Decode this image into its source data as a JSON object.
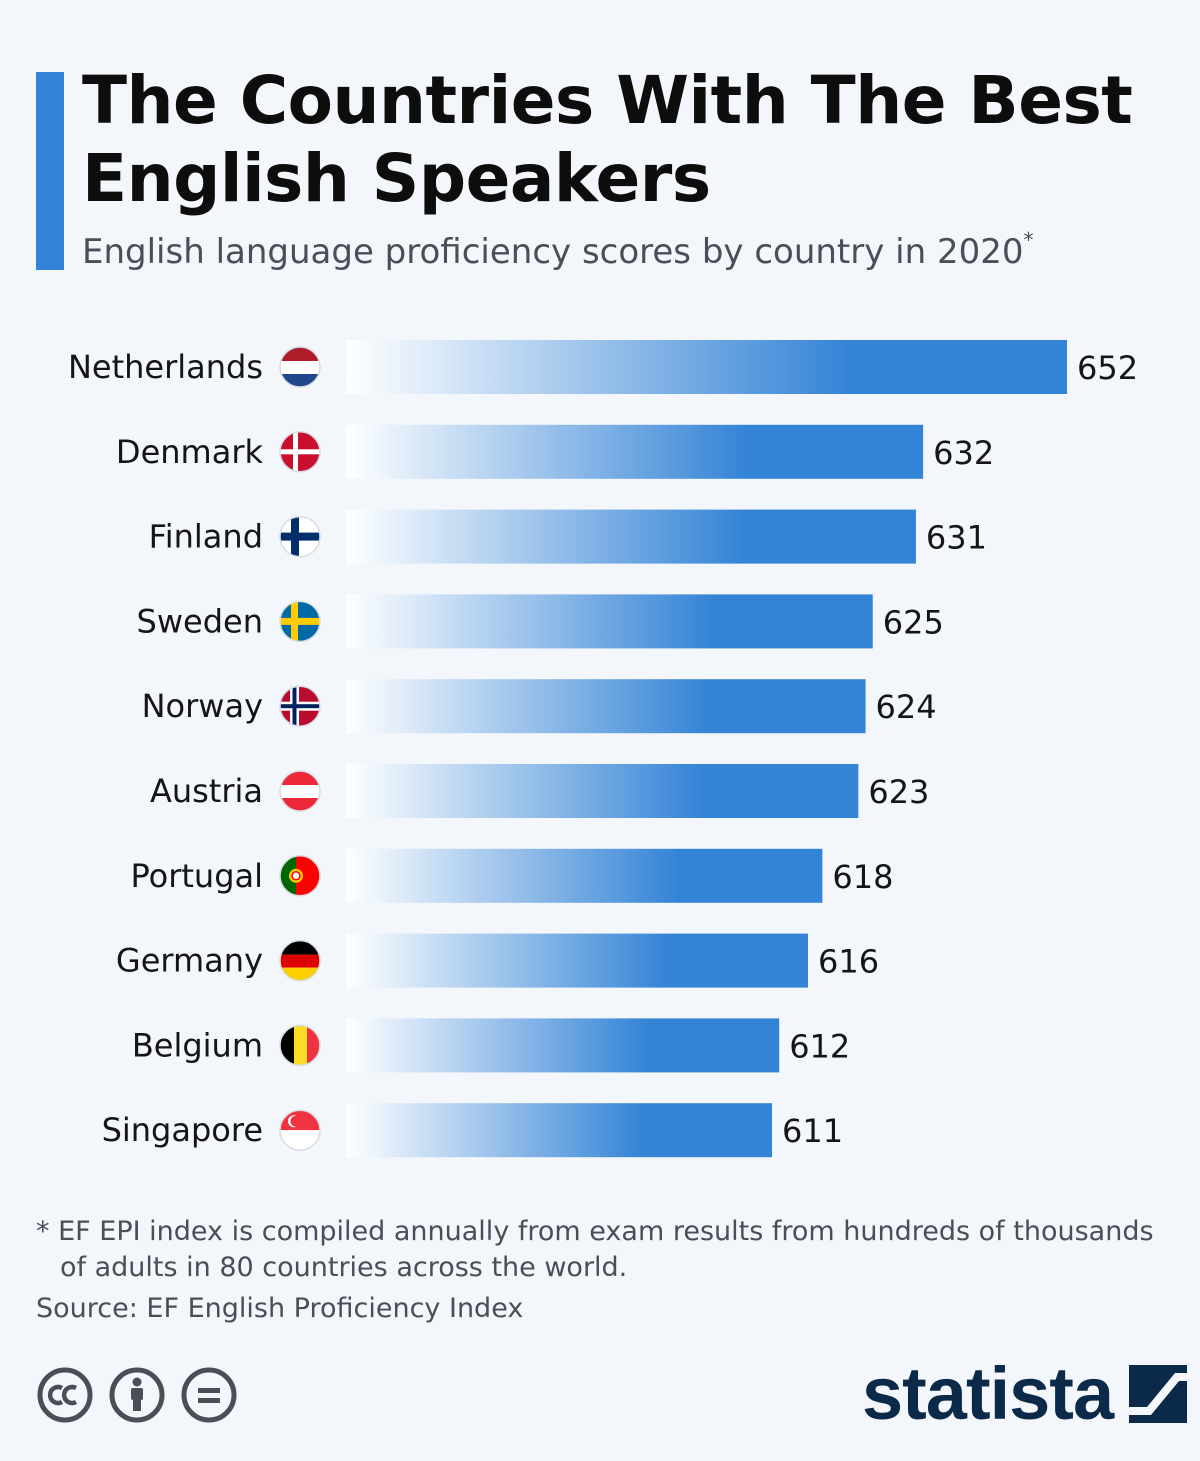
{
  "header": {
    "title": "The Countries With The Best English Speakers",
    "subtitle": "English language proficiency scores by country in 2020",
    "subtitle_marker": "*"
  },
  "chart_data": {
    "type": "bar",
    "orientation": "horizontal",
    "categories": [
      "Netherlands",
      "Denmark",
      "Finland",
      "Sweden",
      "Norway",
      "Austria",
      "Portugal",
      "Germany",
      "Belgium",
      "Singapore"
    ],
    "values": [
      652,
      632,
      631,
      625,
      624,
      623,
      618,
      616,
      612,
      611
    ],
    "bar_color": "#3383d6",
    "bar_gradient_start": "#ffffff",
    "value_labels": true,
    "grid": false,
    "legend": false
  },
  "flags": [
    "netherlands-flag-icon",
    "denmark-flag-icon",
    "finland-flag-icon",
    "sweden-flag-icon",
    "norway-flag-icon",
    "austria-flag-icon",
    "portugal-flag-icon",
    "germany-flag-icon",
    "belgium-flag-icon",
    "singapore-flag-icon"
  ],
  "footer": {
    "footnote_line1": "* EF EPI index is compiled annually from exam results from hundreds of thousands",
    "footnote_line2": "of adults in 80 countries across the world.",
    "source": "Source: EF English Proficiency Index",
    "logo": "statista",
    "license_icons": [
      "cc-icon",
      "attribution-icon",
      "no-derivatives-icon"
    ]
  }
}
